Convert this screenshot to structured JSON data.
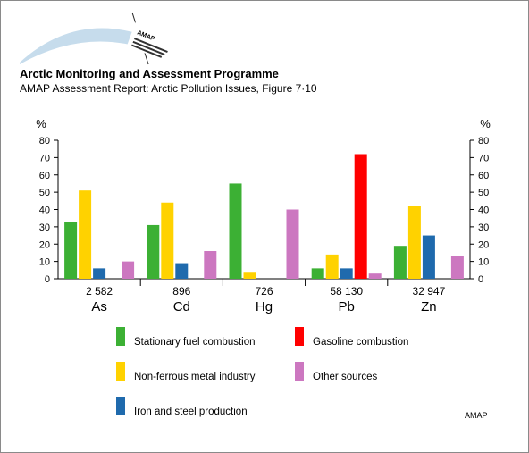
{
  "header": {
    "logo_text": "AMAP",
    "title": "Arctic Monitoring and Assessment Programme",
    "subtitle": "AMAP Assessment Report: Arctic Pollution Issues, Figure 7·10"
  },
  "footer": {
    "credit": "AMAP"
  },
  "colors": {
    "Stationary fuel combustion": "#3cb034",
    "Non-ferrous metal industry": "#ffd200",
    "Iron and steel production": "#1f6aad",
    "Gasoline combustion": "#ff0000",
    "Other sources": "#cc77c0"
  },
  "chart_data": {
    "type": "bar",
    "ylabel": "%",
    "ylabel_right": "%",
    "ylim": [
      0,
      80
    ],
    "yticks": [
      0,
      10,
      20,
      30,
      40,
      50,
      60,
      70,
      80
    ],
    "grid": false,
    "legend_position": "bottom",
    "categories": [
      "As",
      "Cd",
      "Hg",
      "Pb",
      "Zn"
    ],
    "category_totals": [
      "2 582",
      "896",
      "726",
      "58 130",
      "32 947"
    ],
    "series": [
      {
        "name": "Stationary fuel combustion",
        "values": [
          33,
          31,
          55,
          6,
          19
        ]
      },
      {
        "name": "Non-ferrous metal industry",
        "values": [
          51,
          44,
          4,
          14,
          42
        ]
      },
      {
        "name": "Iron and steel production",
        "values": [
          6,
          9,
          0,
          6,
          25
        ]
      },
      {
        "name": "Gasoline combustion",
        "values": [
          0,
          0,
          0,
          72,
          0
        ]
      },
      {
        "name": "Other sources",
        "values": [
          10,
          16,
          40,
          3,
          13
        ]
      }
    ]
  }
}
